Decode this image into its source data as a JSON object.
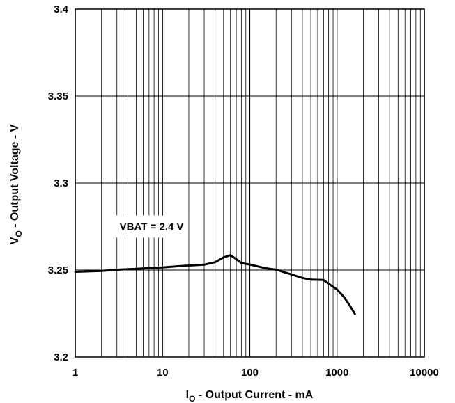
{
  "chart_data": {
    "type": "line",
    "title": "",
    "xlabel": {
      "main": "I",
      "sub": "O",
      "rest": " - Output Current - mA"
    },
    "ylabel": {
      "main": "V",
      "sub": "O",
      "rest": " - Output Voltage - V"
    },
    "x_scale": "log",
    "xlim": [
      1,
      10000
    ],
    "ylim": [
      3.2,
      3.4
    ],
    "x_ticks": [
      1,
      10,
      100,
      1000,
      10000
    ],
    "x_tick_labels": [
      "1",
      "10",
      "100",
      "1000",
      "10000"
    ],
    "y_ticks": [
      3.2,
      3.25,
      3.3,
      3.35,
      3.4
    ],
    "y_tick_labels": [
      "3.2",
      "3.25",
      "3.3",
      "3.35",
      "3.4"
    ],
    "grid": true,
    "annotation": {
      "text": "VBAT = 2.4 V",
      "x": 7.5,
      "y": 3.275
    },
    "series": [
      {
        "color": "#000000",
        "x": [
          1,
          2,
          3,
          5,
          10,
          15,
          20,
          30,
          40,
          50,
          60,
          70,
          80,
          100,
          150,
          200,
          300,
          400,
          500,
          700,
          800,
          1000,
          1200,
          1400,
          1600
        ],
        "y": [
          3.249,
          3.2495,
          3.2502,
          3.2507,
          3.2515,
          3.2522,
          3.2526,
          3.2531,
          3.2545,
          3.2573,
          3.2585,
          3.2563,
          3.254,
          3.2532,
          3.2511,
          3.2502,
          3.2475,
          3.2455,
          3.2445,
          3.2443,
          3.2422,
          3.2388,
          3.2345,
          3.2295,
          3.2248
        ]
      }
    ]
  }
}
